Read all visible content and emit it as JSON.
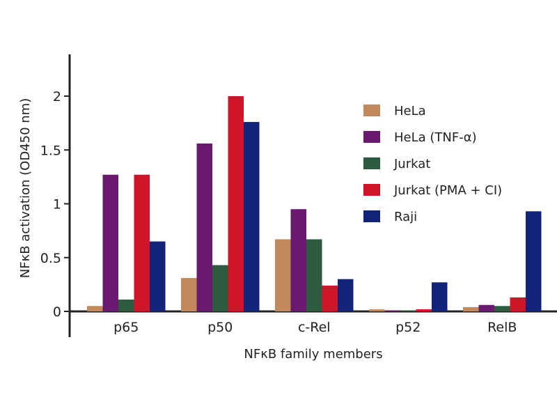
{
  "chart_data": {
    "type": "bar",
    "title": "",
    "xlabel": "NFκB family members",
    "ylabel": "NFκB activation (OD450 nm)",
    "categories": [
      "p65",
      "p50",
      "c-Rel",
      "p52",
      "RelB"
    ],
    "ylim": [
      0,
      2.2
    ],
    "yticks": [
      {
        "value": 0,
        "label": "0"
      },
      {
        "value": 0.5,
        "label": "0.5"
      },
      {
        "value": 1,
        "label": "1"
      },
      {
        "value": 1.5,
        "label": "1.5"
      },
      {
        "value": 2,
        "label": "2"
      }
    ],
    "legend_position": "right",
    "grid": false,
    "series": [
      {
        "name": "HeLa",
        "color": "#c08a5e",
        "values": [
          0.05,
          0.31,
          0.67,
          0.02,
          0.04
        ]
      },
      {
        "name": "HeLa (TNF-α)",
        "color": "#6a1a6e",
        "values": [
          1.27,
          1.56,
          0.95,
          0.01,
          0.06
        ]
      },
      {
        "name": "Jurkat",
        "color": "#2e5a3f",
        "values": [
          0.11,
          0.43,
          0.67,
          0.01,
          0.05
        ]
      },
      {
        "name": "Jurkat (PMA + CI)",
        "color": "#d0142a",
        "values": [
          1.27,
          2.0,
          0.24,
          0.02,
          0.13
        ]
      },
      {
        "name": "Raji",
        "color": "#13237a",
        "values": [
          0.65,
          1.76,
          0.3,
          0.27,
          0.93
        ]
      }
    ]
  }
}
